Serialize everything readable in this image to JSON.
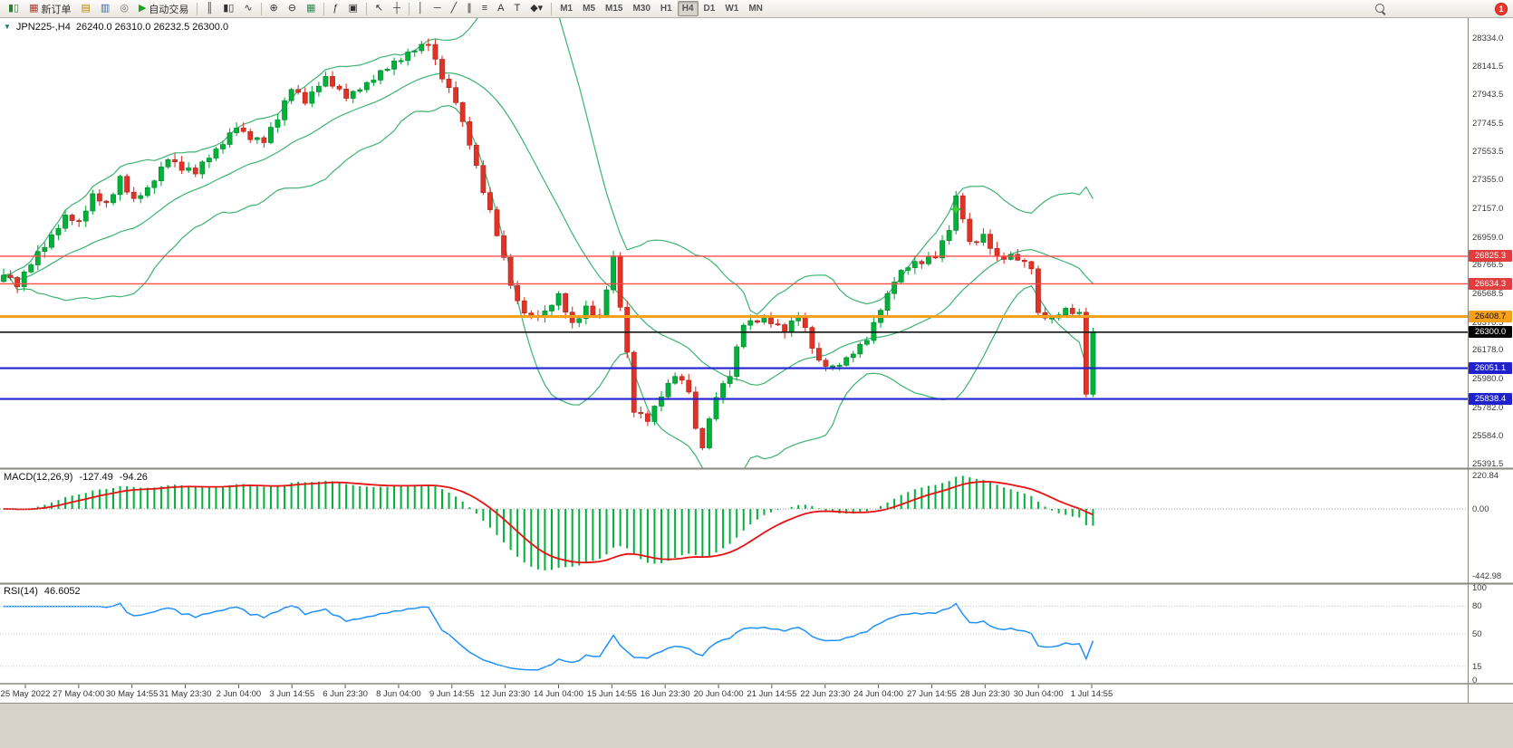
{
  "toolbar": {
    "items": [
      {
        "type": "icon",
        "name": "app-icon",
        "glyph": "▮▯",
        "color": "#2e7d32"
      },
      {
        "type": "labeled",
        "name": "new-order-button",
        "label": "新订单",
        "glyph": "▦",
        "color": "#b03a2e"
      },
      {
        "type": "icon",
        "name": "chart-profile-icon",
        "glyph": "▤",
        "color": "#b8860b"
      },
      {
        "type": "icon",
        "name": "metaeditor-icon",
        "glyph": "▥",
        "color": "#41699a"
      },
      {
        "type": "icon",
        "name": "market-watch-icon",
        "glyph": "◎",
        "color": "#6a6a6a"
      },
      {
        "type": "labeled",
        "name": "autotrading-button",
        "label": "自动交易",
        "glyph": "▶",
        "color": "#19a819"
      },
      {
        "type": "sep"
      },
      {
        "type": "icon",
        "name": "bar-chart-type-icon",
        "glyph": "║"
      },
      {
        "type": "icon",
        "name": "candlestick-chart-type-icon",
        "glyph": "▮▯"
      },
      {
        "type": "icon",
        "name": "line-chart-type-icon",
        "glyph": "∿"
      },
      {
        "type": "sep"
      },
      {
        "type": "icon",
        "name": "zoom-in-icon",
        "glyph": "⊕"
      },
      {
        "type": "icon",
        "name": "zoom-out-icon",
        "glyph": "⊖"
      },
      {
        "type": "icon",
        "name": "tile-windows-icon",
        "glyph": "▦",
        "color": "#2e8b57"
      },
      {
        "type": "sep"
      },
      {
        "type": "icon",
        "name": "indicators-icon",
        "glyph": "ƒ"
      },
      {
        "type": "icon",
        "name": "templates-icon",
        "glyph": "▣"
      },
      {
        "type": "sep"
      },
      {
        "type": "icon",
        "name": "cursor-icon",
        "glyph": "↖"
      },
      {
        "type": "icon",
        "name": "crosshair-icon",
        "glyph": "┼"
      },
      {
        "type": "sep"
      },
      {
        "type": "icon",
        "name": "vertical-line-icon",
        "glyph": "│"
      },
      {
        "type": "icon",
        "name": "horizontal-line-icon",
        "glyph": "─"
      },
      {
        "type": "icon",
        "name": "trendline-icon",
        "glyph": "╱"
      },
      {
        "type": "icon",
        "name": "channel-icon",
        "glyph": "∥"
      },
      {
        "type": "icon",
        "name": "fibonacci-icon",
        "glyph": "≡"
      },
      {
        "type": "icon",
        "name": "text-icon",
        "glyph": "A"
      },
      {
        "type": "icon",
        "name": "textbox-icon",
        "glyph": "T"
      },
      {
        "type": "icon",
        "name": "shapes-icon",
        "glyph": "◆▾"
      },
      {
        "type": "sep"
      }
    ],
    "timeframes": [
      "M1",
      "M5",
      "M15",
      "M30",
      "H1",
      "H4",
      "D1",
      "W1",
      "MN"
    ],
    "active_timeframe": "H4",
    "notification_count": "1"
  },
  "chart_header": {
    "symbol_period": "JPN225-,H4",
    "ohlc": "26240.0 26310.0 26232.5 26300.0"
  },
  "indicators": {
    "macd": {
      "label": "MACD(12,26,9)",
      "value_main": "-127.49",
      "value_signal": "-94.26"
    },
    "rsi": {
      "label": "RSI(14)",
      "value": "46.6052"
    }
  },
  "chart_data": {
    "type": "candlestick",
    "title": "JPN225-,H4",
    "timeframe": "H4",
    "current_price": "26300.0",
    "price_ticks": [
      "28334.0",
      "28141.5",
      "27943.5",
      "27745.5",
      "27553.5",
      "27355.0",
      "27157.0",
      "26959.0",
      "26766.5",
      "26568.5",
      "26370.5",
      "26178.0",
      "25980.0",
      "25782.0",
      "25584.0",
      "25391.5"
    ],
    "time_labels": [
      "25 May 2022",
      "27 May 04:00",
      "30 May 14:55",
      "31 May 23:30",
      "2 Jun 04:00",
      "3 Jun 14:55",
      "6 Jun 23:30",
      "8 Jun 04:00",
      "9 Jun 14:55",
      "12 Jun 23:30",
      "14 Jun 04:00",
      "15 Jun 14:55",
      "16 Jun 23:30",
      "20 Jun 04:00",
      "21 Jun 14:55",
      "22 Jun 23:30",
      "24 Jun 04:00",
      "27 Jun 14:55",
      "28 Jun 23:30",
      "30 Jun 04:00",
      "1 Jul 14:55"
    ],
    "candles_count": 160,
    "first_open": 26650,
    "last_close": 26300,
    "zigzag": 13,
    "wick": 40,
    "candle_up": "#00b13a",
    "candle_down": "#e03226",
    "close_anchors": [
      [
        0,
        26700
      ],
      [
        2,
        26620
      ],
      [
        4,
        26780
      ],
      [
        6,
        26900
      ],
      [
        9,
        27100
      ],
      [
        11,
        27060
      ],
      [
        13,
        27250
      ],
      [
        15,
        27180
      ],
      [
        17,
        27360
      ],
      [
        19,
        27210
      ],
      [
        21,
        27290
      ],
      [
        24,
        27500
      ],
      [
        26,
        27430
      ],
      [
        28,
        27410
      ],
      [
        31,
        27560
      ],
      [
        34,
        27720
      ],
      [
        36,
        27640
      ],
      [
        38,
        27620
      ],
      [
        40,
        27780
      ],
      [
        42,
        27990
      ],
      [
        44,
        27900
      ],
      [
        47,
        28060
      ],
      [
        50,
        27930
      ],
      [
        53,
        28010
      ],
      [
        55,
        28100
      ],
      [
        57,
        28160
      ],
      [
        60,
        28260
      ],
      [
        62,
        28300
      ],
      [
        64,
        28060
      ],
      [
        66,
        27900
      ],
      [
        68,
        27600
      ],
      [
        70,
        27280
      ],
      [
        72,
        26980
      ],
      [
        74,
        26640
      ],
      [
        75,
        26500
      ],
      [
        77,
        26400
      ],
      [
        79,
        26430
      ],
      [
        81,
        26560
      ],
      [
        83,
        26350
      ],
      [
        85,
        26470
      ],
      [
        87,
        26400
      ],
      [
        88,
        26600
      ],
      [
        89,
        26820
      ],
      [
        91,
        26150
      ],
      [
        92,
        25760
      ],
      [
        94,
        25690
      ],
      [
        96,
        25860
      ],
      [
        98,
        26010
      ],
      [
        100,
        25900
      ],
      [
        101,
        25620
      ],
      [
        102,
        25510
      ],
      [
        104,
        25860
      ],
      [
        106,
        26010
      ],
      [
        108,
        26360
      ],
      [
        111,
        26390
      ],
      [
        114,
        26310
      ],
      [
        116,
        26430
      ],
      [
        119,
        26090
      ],
      [
        121,
        26050
      ],
      [
        123,
        26110
      ],
      [
        126,
        26260
      ],
      [
        128,
        26460
      ],
      [
        130,
        26660
      ],
      [
        132,
        26760
      ],
      [
        134,
        26790
      ],
      [
        136,
        26830
      ],
      [
        138,
        27010
      ],
      [
        139,
        27230
      ],
      [
        140,
        27090
      ],
      [
        141,
        26910
      ],
      [
        143,
        26960
      ],
      [
        145,
        26810
      ],
      [
        147,
        26830
      ],
      [
        149,
        26780
      ],
      [
        150,
        26750
      ],
      [
        151,
        26420
      ],
      [
        153,
        26390
      ],
      [
        155,
        26460
      ],
      [
        157,
        26430
      ],
      [
        158,
        25880
      ],
      [
        159,
        26300
      ]
    ],
    "bollinger": {
      "period": 20,
      "deviation": 2,
      "color": "#3cb371"
    },
    "horizontal_lines": [
      {
        "price": 26825.3,
        "color": "#ff4a4a",
        "width": 1.4
      },
      {
        "price": 26634.3,
        "color": "#ff4a4a",
        "width": 1.4
      },
      {
        "price": 26408.7,
        "color": "#f6a01c",
        "width": 3
      },
      {
        "price": 26300.0,
        "color": "#141414",
        "width": 1.6
      },
      {
        "price": 26051.1,
        "color": "#2323cf",
        "width": 2.2
      },
      {
        "price": 25838.4,
        "color": "#2323cf",
        "width": 2.2
      }
    ],
    "badges": [
      {
        "label": "26825.3",
        "price": 26825.3,
        "bg": "#e23d3d",
        "fg": "#ffffff"
      },
      {
        "label": "26634.3",
        "price": 26634.3,
        "bg": "#e23d3d",
        "fg": "#ffffff"
      },
      {
        "label": "26408.7",
        "price": 26408.7,
        "bg": "#f6a01c",
        "fg": "#111111"
      },
      {
        "label": "26300.0",
        "price": 26300.0,
        "bg": "#000000",
        "fg": "#ffffff"
      },
      {
        "label": "26051.1",
        "price": 26051.1,
        "bg": "#2020cc",
        "fg": "#ffffff"
      },
      {
        "label": "25838.4",
        "price": 25838.4,
        "bg": "#2020cc",
        "fg": "#ffffff"
      }
    ],
    "marker": {
      "index": 139,
      "price": 27150,
      "color": "#35d23c"
    },
    "macd": {
      "fast": 12,
      "slow": 26,
      "signal": 9,
      "histogram_color": "#00b13a",
      "signal_color": "#e81010",
      "scale_labels": [
        {
          "label": "220.84",
          "value": 220.84
        },
        {
          "label": "0.00",
          "value": 0
        },
        {
          "label": "-442.98",
          "value": -442.98
        }
      ]
    },
    "rsi": {
      "period": 14,
      "color": "#1e90ff",
      "scale_labels": [
        {
          "label": "100",
          "value": 100
        },
        {
          "label": "80",
          "value": 80
        },
        {
          "label": "50",
          "value": 50
        },
        {
          "label": "15",
          "value": 15
        },
        {
          "label": "0",
          "value": 0
        }
      ],
      "level_lines": [
        80,
        50,
        15
      ]
    }
  }
}
